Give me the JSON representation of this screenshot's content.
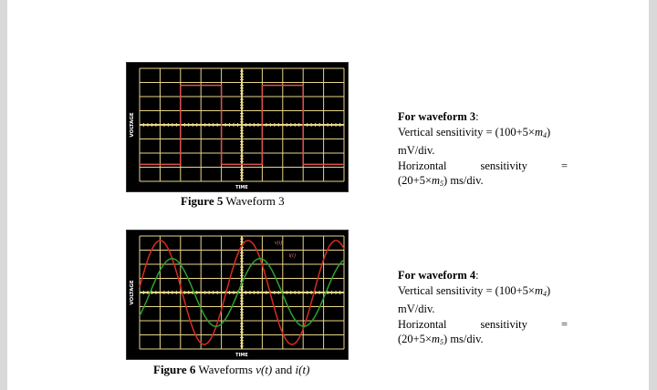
{
  "figure5": {
    "y_label": "VOLTAGE",
    "x_label": "TIME",
    "caption_number": "Figure 5",
    "caption_text": "Waveform 3"
  },
  "figure6": {
    "y_label": "VOLTAGE",
    "x_label": "TIME",
    "curve_label_v": "v(t)",
    "curve_label_i": "i(t)",
    "caption_number": "Figure 6",
    "caption_text": "Waveforms",
    "caption_v": "v(t)",
    "caption_and": "and",
    "caption_i": "i(t)"
  },
  "block3": {
    "heading_prefix": "For waveform ",
    "heading_number": "3",
    "heading_suffix": ":",
    "vert_prefix": "Vertical sensitivity = (100+5×",
    "vert_var": "m",
    "vert_sub": "4",
    "vert_suffix": ")",
    "vert_unit": "mV/div.",
    "horiz_word1": "Horizontal",
    "horiz_word2": "sensitivity",
    "horiz_eq": "=",
    "horiz_prefix": "(20+5×",
    "horiz_var": "m",
    "horiz_sub": "5",
    "horiz_suffix": ") ms/div."
  },
  "block4": {
    "heading_prefix": "For waveform ",
    "heading_number": "4",
    "heading_suffix": ":",
    "vert_prefix": "Vertical sensitivity = (100+5×",
    "vert_var": "m",
    "vert_sub": "4",
    "vert_suffix": ")",
    "vert_unit": "mV/div.",
    "horiz_word1": "Horizontal",
    "horiz_word2": "sensitivity",
    "horiz_eq": "=",
    "horiz_prefix": "(20+5×",
    "horiz_var": "m",
    "horiz_sub": "5",
    "horiz_suffix": ") ms/div."
  },
  "colors": {
    "grid": "#e8d58a",
    "square_wave": "#e05050",
    "voltage_wave": "#d92b1f",
    "current_wave": "#2ea12e"
  }
}
